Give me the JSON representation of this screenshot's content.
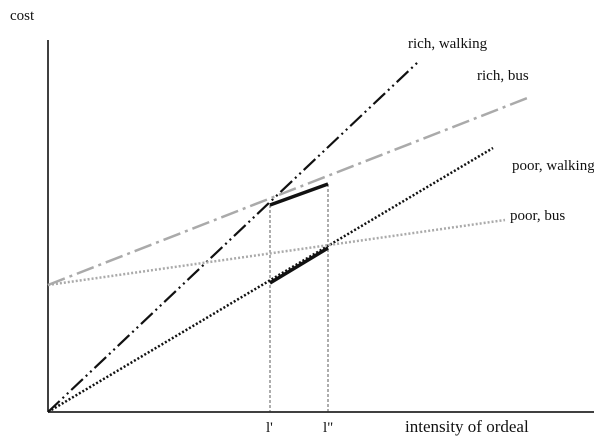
{
  "axes": {
    "y_label": "cost",
    "x_label": "intensity of ordeal"
  },
  "lines": [
    {
      "label": "rich, walking"
    },
    {
      "label": "rich, bus"
    },
    {
      "label": "poor, walking"
    },
    {
      "label": "poor, bus"
    }
  ],
  "markers": [
    {
      "label": "l'"
    },
    {
      "label": "l\""
    }
  ]
}
